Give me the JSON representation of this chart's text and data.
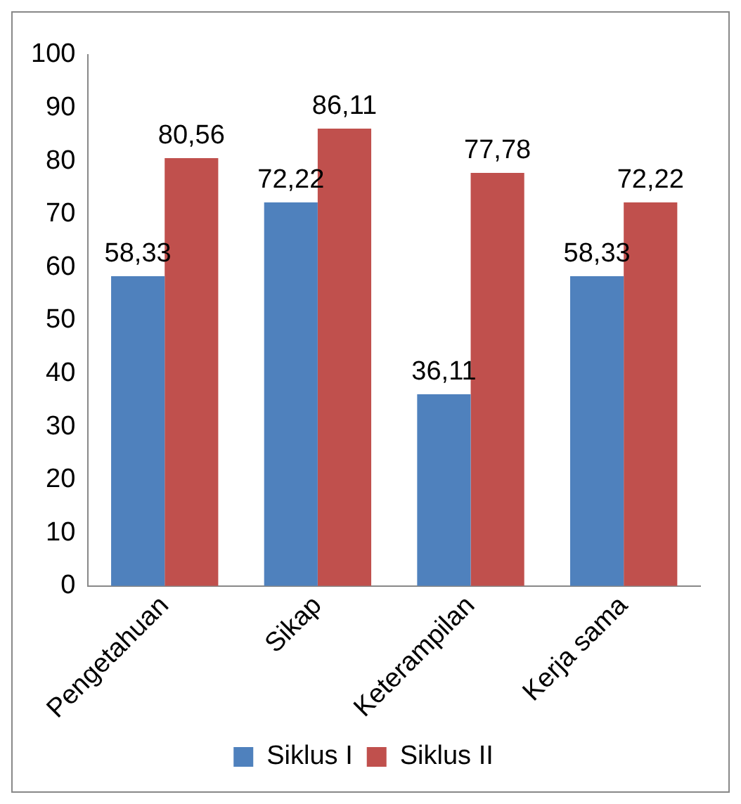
{
  "chart_data": {
    "type": "bar",
    "categories": [
      "Pengetahuan",
      "Sikap",
      "Keterampilan",
      "Kerja sama"
    ],
    "series": [
      {
        "name": "Siklus I",
        "color": "#4f81bd",
        "values": [
          58.33,
          72.22,
          36.11,
          58.33
        ],
        "value_labels": [
          "58,33",
          "72,22",
          "36,11",
          "58,33"
        ]
      },
      {
        "name": "Siklus II",
        "color": "#c0504d",
        "values": [
          80.56,
          86.11,
          77.78,
          72.22
        ],
        "value_labels": [
          "80,56",
          "86,11",
          "77,78",
          "72,22"
        ]
      }
    ],
    "ylim": [
      0,
      100
    ],
    "yticks": [
      0,
      10,
      20,
      30,
      40,
      50,
      60,
      70,
      80,
      90,
      100
    ],
    "grid": false,
    "legend": "bottom"
  }
}
